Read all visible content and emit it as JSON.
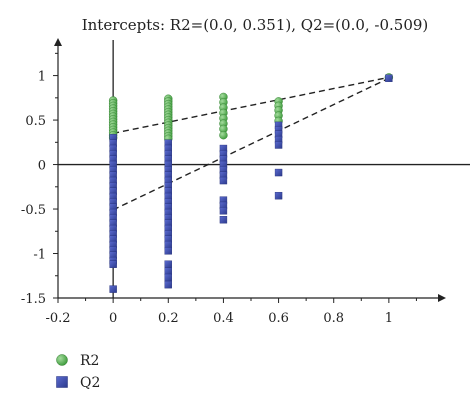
{
  "chart_data": {
    "type": "scatter",
    "title": "Intercepts: R2=(0.0, 0.351), Q2=(0.0, -0.509)",
    "xlabel": "",
    "ylabel": "",
    "xlim": [
      -0.2,
      1.2
    ],
    "ylim": [
      -1.5,
      1.4
    ],
    "x_ticks": [
      -0.2,
      0,
      0.2,
      0.4,
      0.6,
      0.8,
      1
    ],
    "x_tick_labels": [
      "-0.2",
      "0",
      "0.2",
      "0.4",
      "0.6",
      "0.8",
      "1"
    ],
    "y_ticks": [
      -1.5,
      -1,
      -0.5,
      0,
      0.5,
      1
    ],
    "y_tick_labels": [
      "-1.5",
      "-1",
      "-0.5",
      "0",
      "0.5",
      "1"
    ],
    "grid": false,
    "legend_position": "bottom-left",
    "series": [
      {
        "name": "R2",
        "color": "#4caf50",
        "marker": "circle",
        "points": [
          [
            0,
            0.72
          ],
          [
            0,
            0.69
          ],
          [
            0,
            0.66
          ],
          [
            0,
            0.63
          ],
          [
            0,
            0.6
          ],
          [
            0,
            0.57
          ],
          [
            0,
            0.54
          ],
          [
            0,
            0.51
          ],
          [
            0,
            0.48
          ],
          [
            0,
            0.45
          ],
          [
            0,
            0.42
          ],
          [
            0,
            0.39
          ],
          [
            0,
            0.36
          ],
          [
            0,
            0.33
          ],
          [
            0,
            0.3
          ],
          [
            0.2,
            0.74
          ],
          [
            0.2,
            0.71
          ],
          [
            0.2,
            0.68
          ],
          [
            0.2,
            0.65
          ],
          [
            0.2,
            0.62
          ],
          [
            0.2,
            0.59
          ],
          [
            0.2,
            0.56
          ],
          [
            0.2,
            0.53
          ],
          [
            0.2,
            0.5
          ],
          [
            0.2,
            0.47
          ],
          [
            0.2,
            0.44
          ],
          [
            0.2,
            0.41
          ],
          [
            0.2,
            0.38
          ],
          [
            0.2,
            0.35
          ],
          [
            0.2,
            0.32
          ],
          [
            0.2,
            0.29
          ],
          [
            0.4,
            0.76
          ],
          [
            0.4,
            0.7
          ],
          [
            0.4,
            0.64
          ],
          [
            0.4,
            0.58
          ],
          [
            0.4,
            0.52
          ],
          [
            0.4,
            0.46
          ],
          [
            0.4,
            0.4
          ],
          [
            0.4,
            0.33
          ],
          [
            0.6,
            0.71
          ],
          [
            0.6,
            0.66
          ],
          [
            0.6,
            0.61
          ],
          [
            0.6,
            0.55
          ],
          [
            0.6,
            0.49
          ],
          [
            1,
            0.98
          ]
        ]
      },
      {
        "name": "Q2",
        "color": "#3b4ba8",
        "marker": "square",
        "points": [
          [
            0,
            0.3
          ],
          [
            0,
            0.24
          ],
          [
            0,
            0.18
          ],
          [
            0,
            0.12
          ],
          [
            0,
            0.06
          ],
          [
            0,
            0
          ],
          [
            0,
            -0.06
          ],
          [
            0,
            -0.12
          ],
          [
            0,
            -0.18
          ],
          [
            0,
            -0.24
          ],
          [
            0,
            -0.3
          ],
          [
            0,
            -0.36
          ],
          [
            0,
            -0.42
          ],
          [
            0,
            -0.48
          ],
          [
            0,
            -0.54
          ],
          [
            0,
            -0.6
          ],
          [
            0,
            -0.66
          ],
          [
            0,
            -0.72
          ],
          [
            0,
            -0.78
          ],
          [
            0,
            -0.84
          ],
          [
            0,
            -0.9
          ],
          [
            0,
            -0.96
          ],
          [
            0,
            -1.02
          ],
          [
            0,
            -1.08
          ],
          [
            0,
            -1.12
          ],
          [
            0,
            -1.4
          ],
          [
            0.2,
            0.24
          ],
          [
            0.2,
            0.18
          ],
          [
            0.2,
            0.12
          ],
          [
            0.2,
            0.06
          ],
          [
            0.2,
            0
          ],
          [
            0.2,
            -0.06
          ],
          [
            0.2,
            -0.12
          ],
          [
            0.2,
            -0.18
          ],
          [
            0.2,
            -0.24
          ],
          [
            0.2,
            -0.3
          ],
          [
            0.2,
            -0.36
          ],
          [
            0.2,
            -0.42
          ],
          [
            0.2,
            -0.48
          ],
          [
            0.2,
            -0.54
          ],
          [
            0.2,
            -0.6
          ],
          [
            0.2,
            -0.66
          ],
          [
            0.2,
            -0.72
          ],
          [
            0.2,
            -0.78
          ],
          [
            0.2,
            -0.84
          ],
          [
            0.2,
            -0.9
          ],
          [
            0.2,
            -0.97
          ],
          [
            0.2,
            -1.12
          ],
          [
            0.2,
            -1.2
          ],
          [
            0.2,
            -1.27
          ],
          [
            0.2,
            -1.35
          ],
          [
            0.4,
            0.18
          ],
          [
            0.4,
            0.12
          ],
          [
            0.4,
            0.06
          ],
          [
            0.4,
            0
          ],
          [
            0.4,
            -0.06
          ],
          [
            0.4,
            -0.12
          ],
          [
            0.4,
            -0.18
          ],
          [
            0.4,
            -0.4
          ],
          [
            0.4,
            -0.46
          ],
          [
            0.4,
            -0.52
          ],
          [
            0.4,
            -0.62
          ],
          [
            0.6,
            0.44
          ],
          [
            0.6,
            0.39
          ],
          [
            0.6,
            0.34
          ],
          [
            0.6,
            0.28
          ],
          [
            0.6,
            0.22
          ],
          [
            0.6,
            -0.09
          ],
          [
            0.6,
            -0.35
          ],
          [
            1,
            0.97
          ]
        ]
      }
    ],
    "regression_lines": [
      {
        "name": "R2",
        "from": [
          0,
          0.351
        ],
        "to": [
          1,
          0.98
        ]
      },
      {
        "name": "Q2",
        "from": [
          0,
          -0.509
        ],
        "to": [
          1,
          0.97
        ]
      }
    ]
  }
}
